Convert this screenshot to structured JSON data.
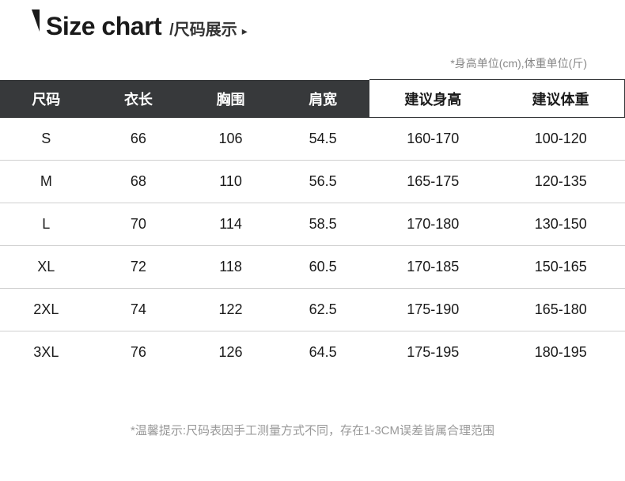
{
  "header": {
    "title_en": "Size chart",
    "title_zh": "/尺码展示",
    "arrow": "▸"
  },
  "unit_note": "*身高单位(cm),体重单位(斤)",
  "table": {
    "type": "table",
    "header_bg_dark": "#37393b",
    "header_fg_dark": "#ffffff",
    "header_bg_light": "#ffffff",
    "header_fg_light": "#1a1a1a",
    "row_border_color": "#d0d0d0",
    "cell_font_size": 18,
    "columns_dark": [
      "尺码",
      "衣长",
      "胸围",
      "肩宽"
    ],
    "columns_light": [
      "建议身高",
      "建议体重"
    ],
    "rows": [
      [
        "S",
        "66",
        "106",
        "54.5",
        "160-170",
        "100-120"
      ],
      [
        "M",
        "68",
        "110",
        "56.5",
        "165-175",
        "120-135"
      ],
      [
        "L",
        "70",
        "114",
        "58.5",
        "170-180",
        "130-150"
      ],
      [
        "XL",
        "72",
        "118",
        "60.5",
        "170-185",
        "150-165"
      ],
      [
        "2XL",
        "74",
        "122",
        "62.5",
        "175-190",
        "165-180"
      ],
      [
        "3XL",
        "76",
        "126",
        "64.5",
        "175-195",
        "180-195"
      ]
    ]
  },
  "footer_note": "*温馨提示:尺码表因手工测量方式不同，存在1-3CM误差皆属合理范围"
}
